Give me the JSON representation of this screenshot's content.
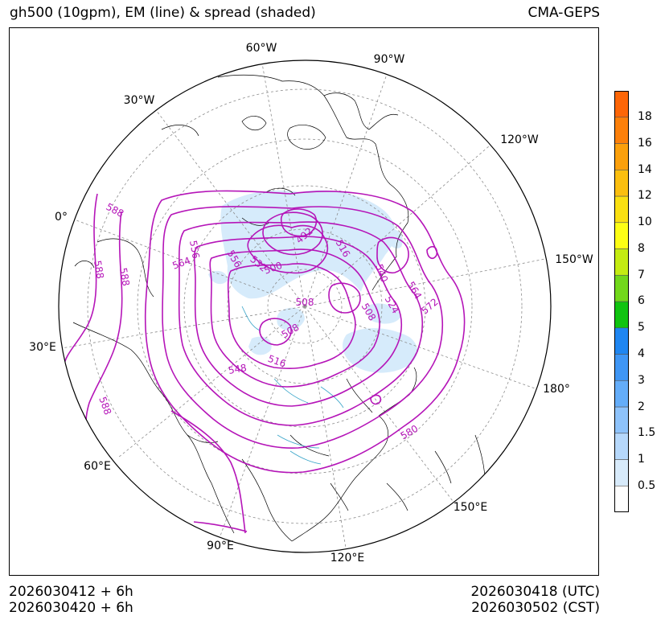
{
  "header": {
    "title_left": "gh500 (10gpm), EM (line) & spread (shaded)",
    "title_right": "CMA-GEPS"
  },
  "footer": {
    "left_line1": "2026030412 + 6h",
    "left_line2": "2026030420 + 6h",
    "right_line1": "2026030418 (UTC)",
    "right_line2": "2026030502 (CST)"
  },
  "map": {
    "projection": "north-polar-stereographic",
    "longitude_labels": [
      "60°W",
      "90°W",
      "30°W",
      "120°W",
      "0°",
      "150°W",
      "30°E",
      "180°",
      "60°E",
      "150°E",
      "90°E",
      "120°E"
    ],
    "contour_labels": [
      "588",
      "588",
      "588",
      "588",
      "556",
      "564",
      "556",
      "532",
      "500",
      "492",
      "516",
      "540",
      "564",
      "572",
      "524",
      "508",
      "508",
      "508",
      "516",
      "548",
      "580"
    ],
    "colors": {
      "contour": "#b515b8",
      "spread_light": "#d6ebfb",
      "coastline": "#000000",
      "grid": "#8c8c8c"
    }
  },
  "colorbar": {
    "levels": [
      "18",
      "16",
      "14",
      "12",
      "10",
      "8",
      "7",
      "6",
      "5",
      "4",
      "3",
      "2",
      "1.5",
      "1",
      "0.5"
    ],
    "colors": [
      "#ffffff",
      "#d8ebfb",
      "#b6d8fb",
      "#8ec3fb",
      "#64adf9",
      "#3f96f5",
      "#1f86f1",
      "#10c410",
      "#72d81b",
      "#c4ec12",
      "#fdfe15",
      "#fae011",
      "#fbbf0f",
      "#fba00c",
      "#fc800a",
      "#fd6607"
    ]
  }
}
